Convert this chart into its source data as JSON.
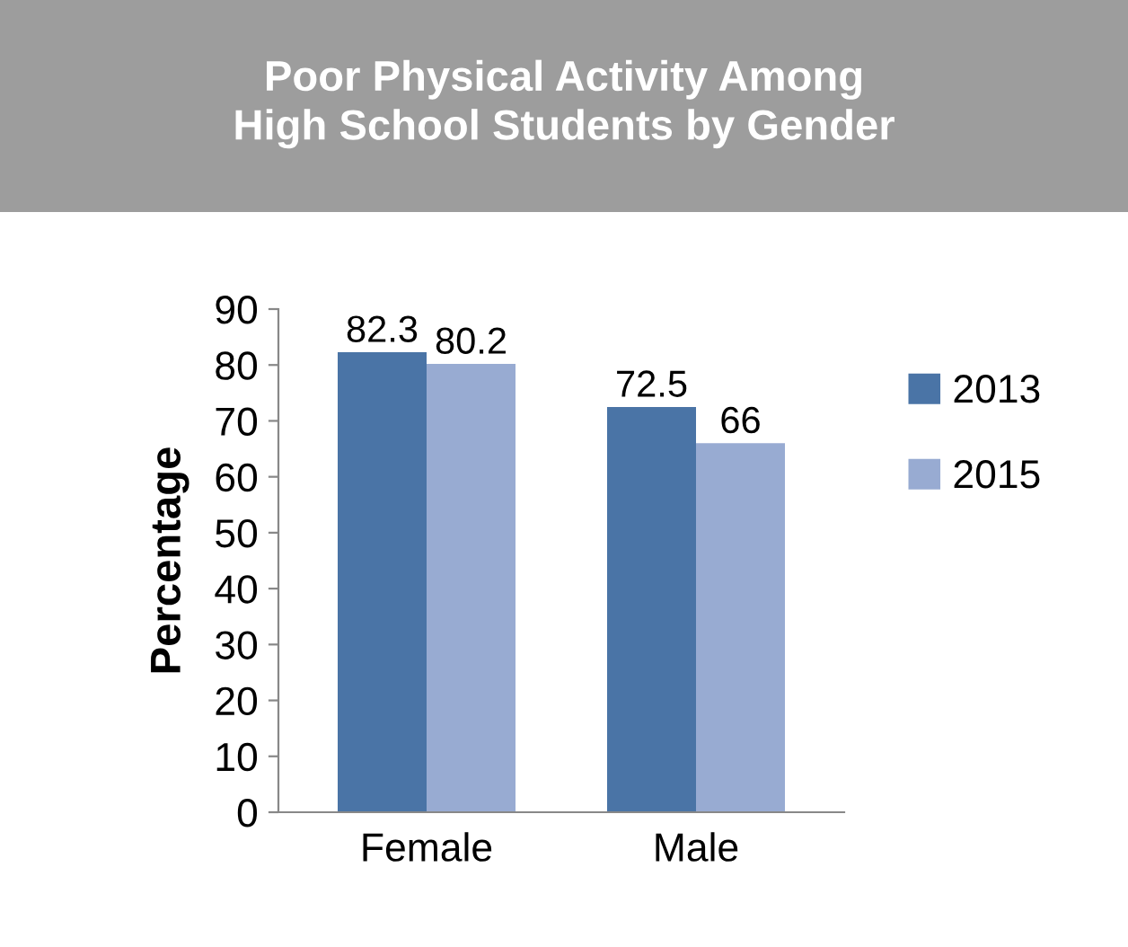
{
  "chart_data": {
    "type": "bar",
    "title": "Poor Physical Activity Among\nHigh School Students by Gender",
    "ylabel": "Percentage",
    "categories": [
      "Female",
      "Male"
    ],
    "series": [
      {
        "name": "2013",
        "color": "#4a74a6",
        "values": [
          82.3,
          72.5
        ]
      },
      {
        "name": "2015",
        "color": "#98abd2",
        "values": [
          80.2,
          66
        ]
      }
    ],
    "ylim": [
      0,
      90
    ],
    "yticks": [
      0,
      10,
      20,
      30,
      40,
      50,
      60,
      70,
      80,
      90
    ],
    "grid": false,
    "legend": "right",
    "data_labels": true
  }
}
